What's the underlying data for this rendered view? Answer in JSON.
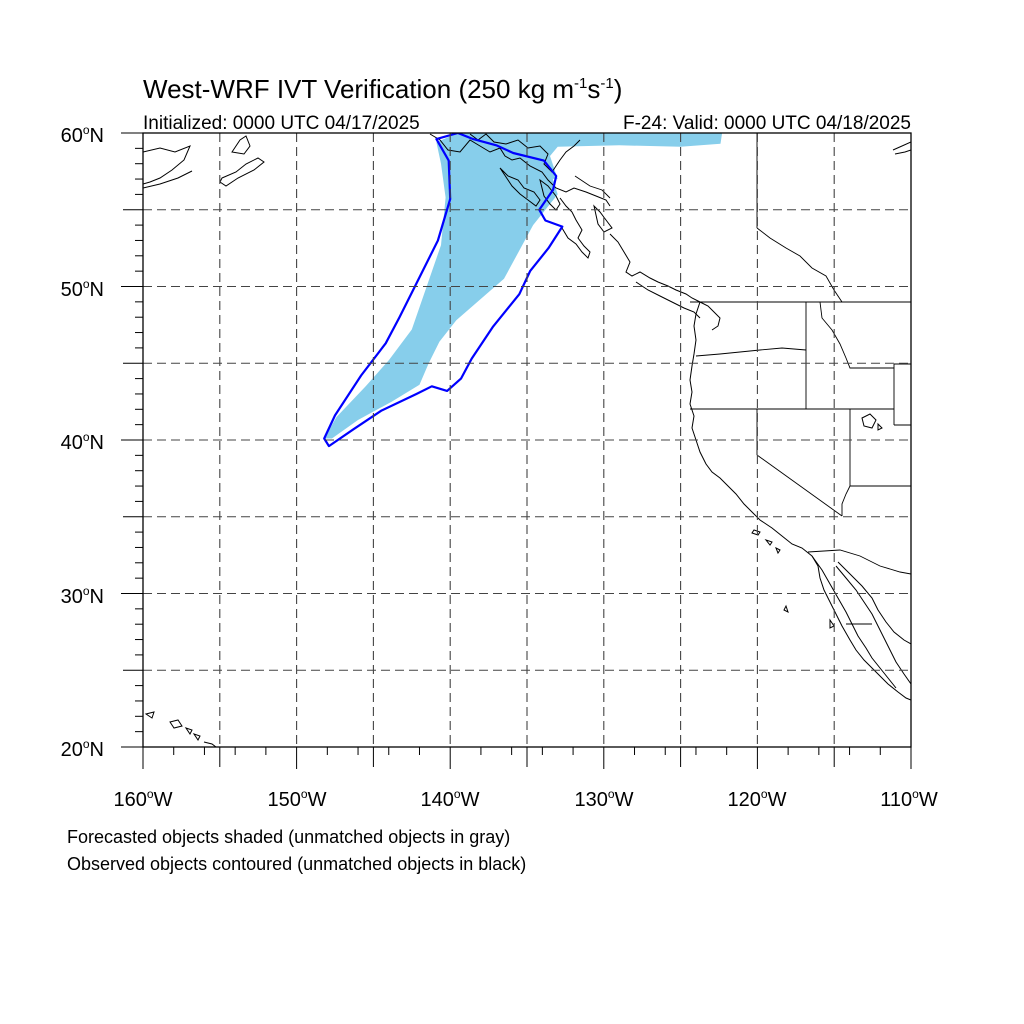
{
  "title": {
    "main": "West-WRF IVT Verification (250 kg m",
    "sup1": "-1",
    "mid": "s",
    "sup2": "-1",
    "end": ")"
  },
  "subtitle_left": "Initialized: 0000 UTC 04/17/2025",
  "subtitle_right": "F-24: Valid: 0000 UTC 04/18/2025",
  "lat_labels": [
    "60",
    "50",
    "40",
    "30",
    "20"
  ],
  "lat_suffix": "N",
  "lon_labels": [
    "160",
    "150",
    "140",
    "130",
    "120",
    "110"
  ],
  "lon_suffix": "W",
  "degree": "o",
  "footnote_1": "Forecasted objects shaded (unmatched objects in gray)",
  "footnote_2": "Observed objects contoured (unmatched objects in black)",
  "colors": {
    "forecast_fill": "#87ceeb",
    "observed_contour": "#0000ff",
    "coastline": "#000000",
    "grid": "#444444"
  },
  "chart_data": {
    "type": "map",
    "projection": "cylindrical equidistant",
    "lon_range": [
      -160,
      -110
    ],
    "lat_range": [
      20,
      60
    ],
    "gridlines_lon": [
      -155,
      -150,
      -145,
      -140,
      -135,
      -130,
      -125,
      -120,
      -115
    ],
    "gridlines_lat": [
      25,
      30,
      35,
      40,
      45,
      50,
      55
    ],
    "grid": "dashed",
    "forecast_object_outline": [
      [
        -139.5,
        60
      ],
      [
        -133.5,
        60
      ],
      [
        -133.5,
        57.6
      ],
      [
        -133.0,
        56.0
      ],
      [
        -134.6,
        54.0
      ],
      [
        -136.5,
        50.5
      ],
      [
        -139.6,
        47.8
      ],
      [
        -140.7,
        46.4
      ],
      [
        -141.4,
        45.0
      ],
      [
        -142.0,
        43.6
      ],
      [
        -143.8,
        42.5
      ],
      [
        -146.0,
        41.3
      ],
      [
        -147.7,
        40.1
      ],
      [
        -148.2,
        40.1
      ],
      [
        -147.4,
        41.5
      ],
      [
        -145.5,
        43.5
      ],
      [
        -144.0,
        45.2
      ],
      [
        -142.5,
        47.2
      ],
      [
        -141.6,
        49.8
      ],
      [
        -140.6,
        52.7
      ],
      [
        -140.3,
        55.8
      ],
      [
        -140.6,
        58.0
      ],
      [
        -140.9,
        59.4
      ]
    ],
    "forecast_object_north_strip": [
      [
        -139.3,
        60
      ],
      [
        -122.3,
        60
      ],
      [
        -122.4,
        59.3
      ],
      [
        -125.0,
        59.1
      ],
      [
        -129.0,
        59.2
      ],
      [
        -133.0,
        59.1
      ],
      [
        -133.5,
        58.5
      ],
      [
        -133.0,
        57.0
      ],
      [
        -139.0,
        57.2
      ]
    ],
    "observed_object_contour": [
      [
        -140.9,
        59.6
      ],
      [
        -140.1,
        58.2
      ],
      [
        -140.0,
        55.7
      ],
      [
        -140.8,
        53.0
      ],
      [
        -142.3,
        50.0
      ],
      [
        -143.3,
        48.0
      ],
      [
        -144.2,
        46.3
      ],
      [
        -145.8,
        44.2
      ],
      [
        -147.5,
        41.6
      ],
      [
        -148.2,
        40.1
      ],
      [
        -147.9,
        39.6
      ],
      [
        -146.3,
        40.7
      ],
      [
        -144.5,
        41.9
      ],
      [
        -142.2,
        43.0
      ],
      [
        -141.2,
        43.5
      ],
      [
        -140.2,
        43.2
      ],
      [
        -139.3,
        44.0
      ],
      [
        -138.6,
        45.3
      ],
      [
        -137.2,
        47.4
      ],
      [
        -135.5,
        49.5
      ],
      [
        -134.8,
        51.0
      ],
      [
        -133.6,
        52.5
      ],
      [
        -132.7,
        53.9
      ],
      [
        -133.8,
        54.3
      ],
      [
        -134.2,
        55.0
      ],
      [
        -133.3,
        56.3
      ],
      [
        -133.1,
        57.2
      ],
      [
        -133.9,
        58.2
      ],
      [
        -135.9,
        58.7
      ],
      [
        -137.0,
        59.2
      ],
      [
        -138.5,
        59.6
      ],
      [
        -139.5,
        60
      ]
    ]
  }
}
